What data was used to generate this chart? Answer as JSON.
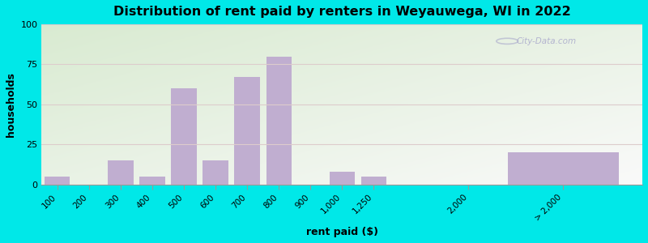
{
  "title": "Distribution of rent paid by renters in Weyauwega, WI in 2022",
  "xlabel": "rent paid ($)",
  "ylabel": "households",
  "bar_color": "#c0aed0",
  "background_outer": "#00e8e8",
  "ylim": [
    0,
    100
  ],
  "yticks": [
    0,
    25,
    50,
    75,
    100
  ],
  "categories": [
    "100",
    "200",
    "300",
    "400",
    "500",
    "600",
    "700",
    "800",
    "900",
    "1,000",
    "1,250",
    "2,000",
    "> 2,000"
  ],
  "values": [
    5,
    0,
    15,
    5,
    60,
    15,
    67,
    80,
    0,
    8,
    5,
    0,
    20
  ],
  "positions": [
    0,
    1,
    2,
    3,
    4,
    5,
    6,
    7,
    8,
    9,
    10,
    13,
    16
  ],
  "bar_widths": [
    0.8,
    0.8,
    0.8,
    0.8,
    0.8,
    0.8,
    0.8,
    0.8,
    0.8,
    0.8,
    0.8,
    0.8,
    3.5
  ],
  "watermark": "City-Data.com",
  "grid_color": "#ddcccc",
  "xlim": [
    -0.5,
    18.5
  ]
}
